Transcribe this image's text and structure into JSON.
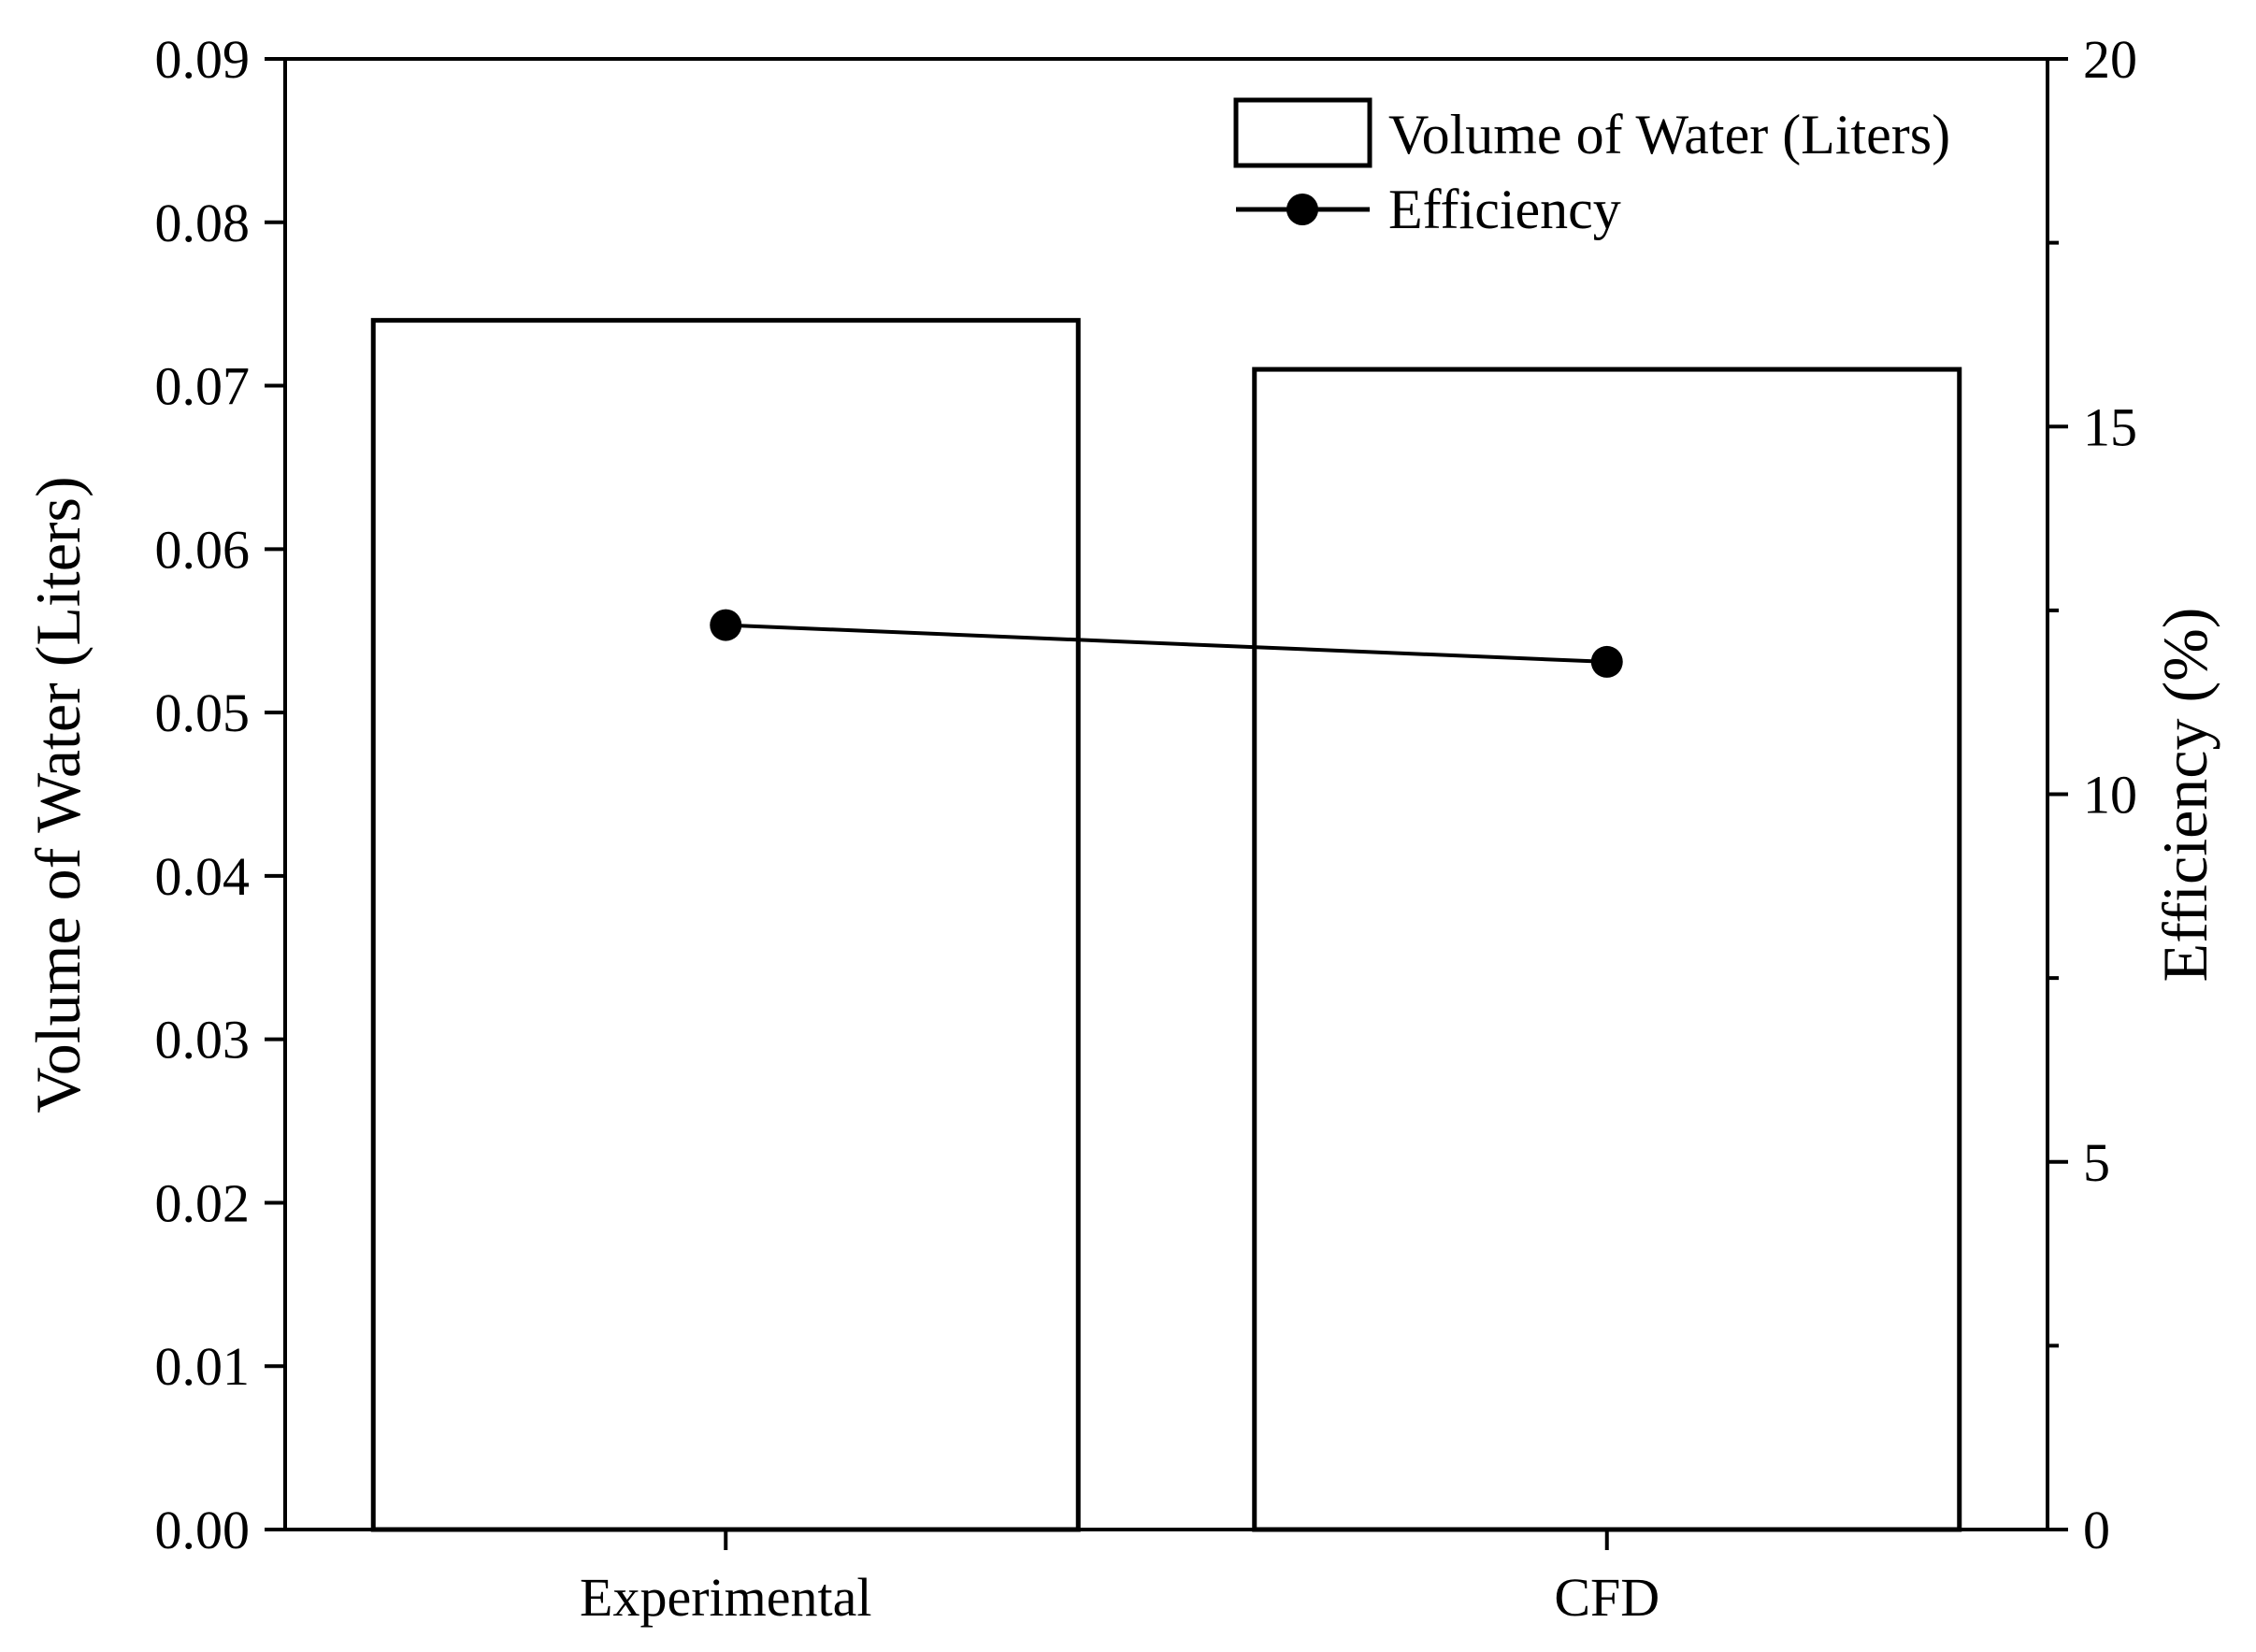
{
  "chart_data": {
    "type": "bar",
    "categories": [
      "Experimental",
      "CFD"
    ],
    "series": [
      {
        "name": "Volume of Water (Liters)",
        "type": "bar",
        "axis": "left",
        "values": [
          0.074,
          0.071
        ]
      },
      {
        "name": "Efficiency",
        "type": "line",
        "axis": "right",
        "values": [
          12.3,
          11.8
        ]
      }
    ],
    "ylabel": "Volume of Water (Liters)",
    "y2label": "Efficiency (%)",
    "ylim": [
      0,
      0.09
    ],
    "y2lim": [
      0,
      20
    ],
    "yticks": [
      "0.00",
      "0.01",
      "0.02",
      "0.03",
      "0.04",
      "0.05",
      "0.06",
      "0.07",
      "0.08",
      "0.09"
    ],
    "y2ticks": [
      "0",
      "5",
      "10",
      "15",
      "20"
    ],
    "legend_position": "top-right",
    "grid": false,
    "colors": {
      "bar_edge": "#000000",
      "bar_fill": "#ffffff",
      "line": "#000000",
      "marker": "#000000"
    }
  }
}
